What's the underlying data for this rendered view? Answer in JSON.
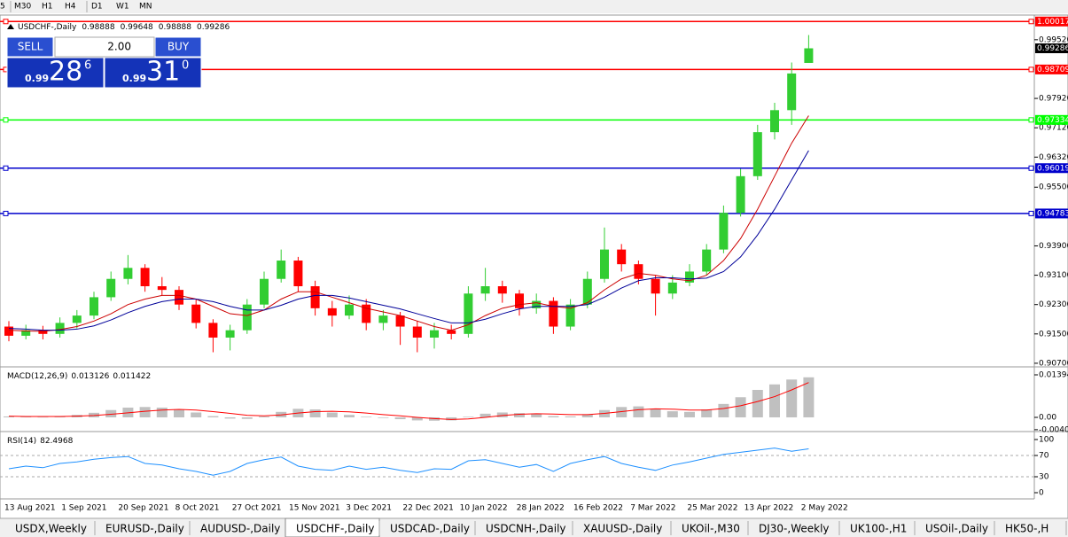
{
  "toolbar": {
    "timeframes": [
      "5",
      "M30",
      "H1",
      "H4",
      "D1",
      "W1",
      "MN"
    ]
  },
  "trade_panel": {
    "sell": "SELL",
    "lots": "2.00",
    "buy": "BUY",
    "bid": {
      "big": "0.99",
      "pips": "28",
      "frac": "6"
    },
    "ask": {
      "big": "0.99",
      "pips": "31",
      "frac": "0"
    }
  },
  "chart_data": [
    {
      "type": "candlestick",
      "symbol": "USDCHF-,Daily",
      "up_color": "#32cd32",
      "down_color": "#ff0000",
      "candles": [
        [
          0.917,
          0.9185,
          0.913,
          0.9145
        ],
        [
          0.9145,
          0.9175,
          0.9135,
          0.916
        ],
        [
          0.916,
          0.9172,
          0.9135,
          0.915
        ],
        [
          0.915,
          0.9195,
          0.914,
          0.918
        ],
        [
          0.918,
          0.9215,
          0.9165,
          0.92
        ],
        [
          0.92,
          0.9265,
          0.919,
          0.925
        ],
        [
          0.925,
          0.932,
          0.924,
          0.93
        ],
        [
          0.93,
          0.9365,
          0.9285,
          0.933
        ],
        [
          0.933,
          0.934,
          0.9265,
          0.928
        ],
        [
          0.928,
          0.9305,
          0.9255,
          0.927
        ],
        [
          0.927,
          0.928,
          0.9215,
          0.923
        ],
        [
          0.923,
          0.9245,
          0.9165,
          0.918
        ],
        [
          0.918,
          0.919,
          0.91,
          0.914
        ],
        [
          0.914,
          0.9175,
          0.9105,
          0.916
        ],
        [
          0.916,
          0.9245,
          0.915,
          0.923
        ],
        [
          0.923,
          0.932,
          0.922,
          0.93
        ],
        [
          0.93,
          0.938,
          0.929,
          0.935
        ],
        [
          0.935,
          0.936,
          0.9265,
          0.928
        ],
        [
          0.928,
          0.9295,
          0.92,
          0.922
        ],
        [
          0.922,
          0.924,
          0.917,
          0.92
        ],
        [
          0.92,
          0.9255,
          0.919,
          0.923
        ],
        [
          0.923,
          0.9245,
          0.916,
          0.918
        ],
        [
          0.918,
          0.9215,
          0.916,
          0.92
        ],
        [
          0.92,
          0.921,
          0.912,
          0.917
        ],
        [
          0.917,
          0.9185,
          0.91,
          0.914
        ],
        [
          0.914,
          0.918,
          0.911,
          0.916
        ],
        [
          0.916,
          0.9175,
          0.9135,
          0.915
        ],
        [
          0.915,
          0.928,
          0.914,
          0.926
        ],
        [
          0.926,
          0.933,
          0.924,
          0.928
        ],
        [
          0.928,
          0.9295,
          0.9235,
          0.926
        ],
        [
          0.926,
          0.927,
          0.92,
          0.922
        ],
        [
          0.922,
          0.926,
          0.9205,
          0.924
        ],
        [
          0.924,
          0.925,
          0.915,
          0.917
        ],
        [
          0.917,
          0.9245,
          0.916,
          0.923
        ],
        [
          0.923,
          0.932,
          0.922,
          0.93
        ],
        [
          0.93,
          0.944,
          0.929,
          0.938
        ],
        [
          0.938,
          0.9395,
          0.932,
          0.934
        ],
        [
          0.934,
          0.935,
          0.9285,
          0.93
        ],
        [
          0.93,
          0.931,
          0.92,
          0.926
        ],
        [
          0.926,
          0.931,
          0.9245,
          0.929
        ],
        [
          0.929,
          0.934,
          0.928,
          0.932
        ],
        [
          0.932,
          0.9395,
          0.931,
          0.938
        ],
        [
          0.938,
          0.95,
          0.937,
          0.948
        ],
        [
          0.948,
          0.96,
          0.947,
          0.958
        ],
        [
          0.958,
          0.972,
          0.957,
          0.97
        ],
        [
          0.97,
          0.978,
          0.968,
          0.976
        ],
        [
          0.976,
          0.989,
          0.972,
          0.986
        ],
        [
          0.98888,
          0.99648,
          0.98888,
          0.99286
        ]
      ],
      "ma_fast": {
        "color": "#cc0000",
        "values": [
          0.916,
          0.9158,
          0.9157,
          0.9162,
          0.917,
          0.9185,
          0.9205,
          0.923,
          0.9245,
          0.9255,
          0.9255,
          0.9245,
          0.9225,
          0.9205,
          0.92,
          0.9215,
          0.9245,
          0.9265,
          0.9265,
          0.925,
          0.9235,
          0.922,
          0.921,
          0.92,
          0.9185,
          0.917,
          0.916,
          0.9175,
          0.92,
          0.922,
          0.923,
          0.9235,
          0.9225,
          0.922,
          0.9235,
          0.927,
          0.93,
          0.9315,
          0.931,
          0.93,
          0.9295,
          0.931,
          0.935,
          0.941,
          0.949,
          0.958,
          0.967,
          0.9745
        ]
      },
      "ma_slow": {
        "color": "#000099",
        "values": [
          0.9165,
          0.9163,
          0.916,
          0.916,
          0.9163,
          0.9172,
          0.9188,
          0.9208,
          0.9225,
          0.9238,
          0.9245,
          0.9245,
          0.9238,
          0.9225,
          0.9215,
          0.9215,
          0.9228,
          0.9245,
          0.9255,
          0.9255,
          0.9248,
          0.9238,
          0.9228,
          0.9218,
          0.9205,
          0.9192,
          0.918,
          0.918,
          0.919,
          0.9205,
          0.9218,
          0.9225,
          0.9225,
          0.9225,
          0.923,
          0.925,
          0.9275,
          0.9295,
          0.9303,
          0.9303,
          0.93,
          0.9302,
          0.932,
          0.936,
          0.942,
          0.949,
          0.957,
          0.965
        ]
      },
      "ylim": [
        0.9065,
        1.0012
      ],
      "yticks": [
        {
          "value": 0.9952,
          "label": "0.99520"
        },
        {
          "value": 0.9792,
          "label": "0.97920"
        },
        {
          "value": 0.9712,
          "label": "0.97120"
        },
        {
          "value": 0.9632,
          "label": "0.96320"
        },
        {
          "value": 0.955,
          "label": "0.95500"
        },
        {
          "value": 0.939,
          "label": "0.93900"
        },
        {
          "value": 0.931,
          "label": "0.93100"
        },
        {
          "value": 0.923,
          "label": "0.92300"
        },
        {
          "value": 0.915,
          "label": "0.91500"
        },
        {
          "value": 0.907,
          "label": "0.90700"
        }
      ],
      "levels": [
        {
          "value": 1.00017,
          "color": "#ff0000"
        },
        {
          "value": 0.98709,
          "color": "#ff0000"
        },
        {
          "value": 0.97334,
          "color": "#00ff00"
        },
        {
          "value": 0.96019,
          "color": "#0000cc"
        },
        {
          "value": 0.94783,
          "color": "#0000cc"
        }
      ],
      "current_price": 0.99286,
      "dates": [
        "13 Aug 2021",
        "1 Sep 2021",
        "20 Sep 2021",
        "8 Oct 2021",
        "27 Oct 2021",
        "15 Nov 2021",
        "3 Dec 2021",
        "22 Dec 2021",
        "10 Jan 2022",
        "28 Jan 2022",
        "16 Feb 2022",
        "7 Mar 2022",
        "25 Mar 2022",
        "13 Apr 2022",
        "2 May 2022"
      ]
    },
    {
      "type": "macd",
      "label": "MACD(12,26,9)",
      "bar_color": "#c0c0c0",
      "signal_color": "#ff0000",
      "values": [
        0.0003,
        0.0002,
        0.0001,
        0.0004,
        0.0008,
        0.0015,
        0.0024,
        0.0032,
        0.0034,
        0.0032,
        0.0026,
        0.0016,
        0.0004,
        -0.0004,
        -0.0005,
        0.0003,
        0.0018,
        0.0028,
        0.0026,
        0.0016,
        0.0008,
        0.0002,
        -0.0002,
        -0.0006,
        -0.001,
        -0.0011,
        -0.001,
        0.0002,
        0.0012,
        0.0016,
        0.0014,
        0.0012,
        0.0004,
        0.0003,
        0.001,
        0.0024,
        0.0034,
        0.0036,
        0.0028,
        0.002,
        0.0018,
        0.0026,
        0.0044,
        0.0066,
        0.009,
        0.0108,
        0.0124,
        0.013126
      ],
      "signal": [
        0.0004,
        0.0003,
        0.0003,
        0.0003,
        0.0004,
        0.0006,
        0.001,
        0.0015,
        0.002,
        0.0024,
        0.0026,
        0.0024,
        0.0019,
        0.0013,
        0.0007,
        0.0005,
        0.0008,
        0.0014,
        0.0019,
        0.002,
        0.0018,
        0.0014,
        0.0009,
        0.0005,
        0,
        -0.0004,
        -0.0007,
        -0.0005,
        0,
        0.0006,
        0.001,
        0.0012,
        0.0011,
        0.0009,
        0.0009,
        0.0013,
        0.0019,
        0.0025,
        0.0028,
        0.0027,
        0.0024,
        0.0024,
        0.0029,
        0.0038,
        0.0052,
        0.0068,
        0.009,
        0.011422
      ],
      "ylim": [
        -0.00465,
        0.01568
      ],
      "yticks": [
        0.01394,
        {
          "value": 0,
          "label": "0.00"
        },
        -0.00404
      ]
    },
    {
      "type": "rsi",
      "label": "RSI(14)",
      "color": "#1e90ff",
      "values": [
        45,
        50,
        47,
        55,
        58,
        63,
        66,
        68,
        55,
        52,
        45,
        40,
        33,
        40,
        55,
        62,
        67,
        50,
        44,
        42,
        50,
        44,
        48,
        42,
        38,
        45,
        44,
        60,
        62,
        55,
        48,
        53,
        40,
        55,
        62,
        68,
        55,
        48,
        42,
        52,
        58,
        65,
        72,
        76,
        80,
        84,
        78,
        82.4968
      ],
      "ylim": [
        0,
        100
      ],
      "yticks": [
        100,
        70,
        30,
        0
      ]
    }
  ],
  "tabs": [
    "USDX,Weekly",
    "EURUSD-,Daily",
    "AUDUSD-,Daily",
    "USDCHF-,Daily",
    "USDCAD-,Daily",
    "USDCNH-,Daily",
    "XAUUSD-,Daily",
    "UKOil-,M30",
    "DJ30-,Weekly",
    "UK100-,H1",
    "USOil-,Daily",
    "HK50-,H"
  ],
  "active_tab": 3
}
